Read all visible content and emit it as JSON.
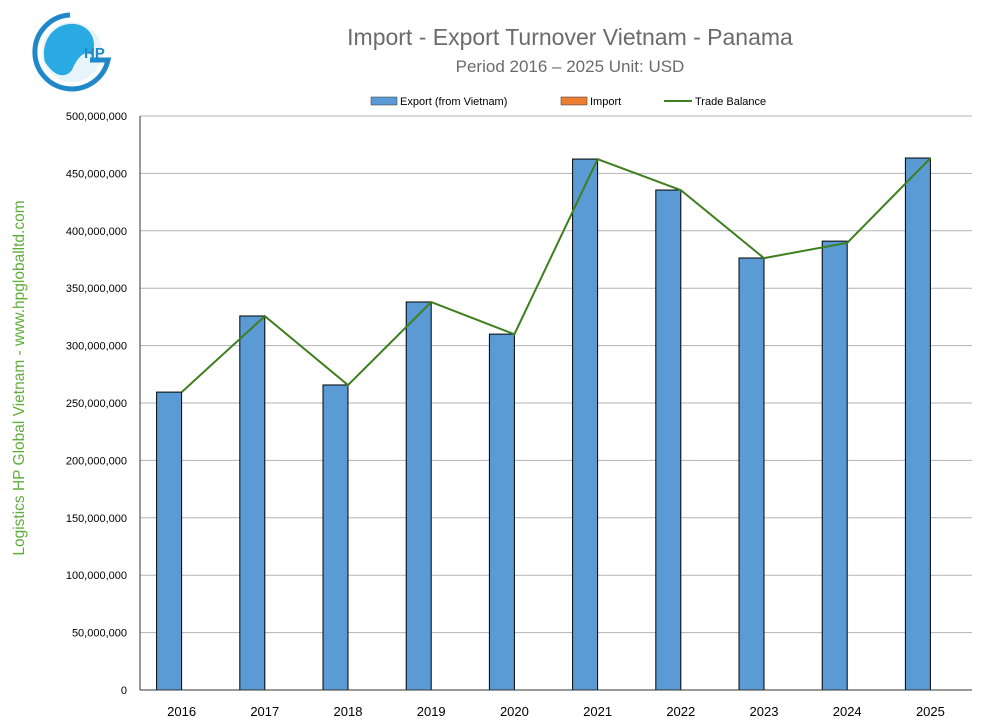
{
  "logo": {
    "text": "HP",
    "colors": [
      "#1e88c8",
      "#29aae2"
    ]
  },
  "watermark": "Logistics HP Global Vietnam - www.hpgloballtd.com",
  "chart_data": {
    "type": "bar",
    "title": "Import - Export Turnover Vietnam - Panama",
    "subtitle": "Period 2016 – 2025  Unit: USD",
    "categories": [
      "2016",
      "2017",
      "2018",
      "2019",
      "2020",
      "2021",
      "2022",
      "2023",
      "2024",
      "2025"
    ],
    "series": [
      {
        "name": "Export (from Vietnam)",
        "kind": "bar",
        "color": "#5b9bd5",
        "values": [
          259500000,
          325800000,
          265700000,
          338000000,
          310000000,
          462500000,
          435500000,
          376300000,
          391000000,
          463400000
        ]
      },
      {
        "name": "Import",
        "kind": "bar",
        "color": "#ed7d31",
        "values": [
          0,
          0,
          0,
          0,
          0,
          0,
          0,
          0,
          0,
          0
        ]
      },
      {
        "name": "Trade Balance",
        "kind": "line",
        "color": "#3f7f1f",
        "values": [
          259400000,
          325700000,
          265600000,
          337900000,
          309900000,
          462400000,
          435400000,
          376200000,
          389500000,
          463300000
        ]
      }
    ],
    "ylim": [
      0,
      500000000
    ],
    "yticks": [
      "0",
      "50,000,000",
      "100,000,000",
      "150,000,000",
      "200,000,000",
      "250,000,000",
      "300,000,000",
      "350,000,000",
      "400,000,000",
      "450,000,000",
      "500,000,000"
    ],
    "grid": true,
    "legend": "top"
  }
}
